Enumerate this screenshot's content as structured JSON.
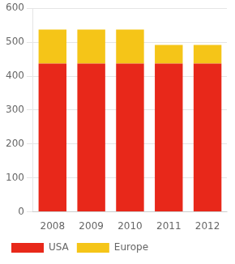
{
  "chart_data": {
    "type": "bar",
    "stacked": true,
    "categories": [
      "2008",
      "2009",
      "2010",
      "2011",
      "2012"
    ],
    "series": [
      {
        "name": "USA",
        "color": "#e8281a",
        "values": [
          437,
          437,
          437,
          437,
          437
        ]
      },
      {
        "name": "Europe",
        "color": "#f5c518",
        "values": [
          100,
          100,
          100,
          55,
          55
        ]
      }
    ],
    "ylim": [
      0,
      600
    ],
    "yticks": [
      0,
      100,
      200,
      300,
      400,
      500,
      600
    ],
    "grid": true,
    "legend": "bottom"
  }
}
